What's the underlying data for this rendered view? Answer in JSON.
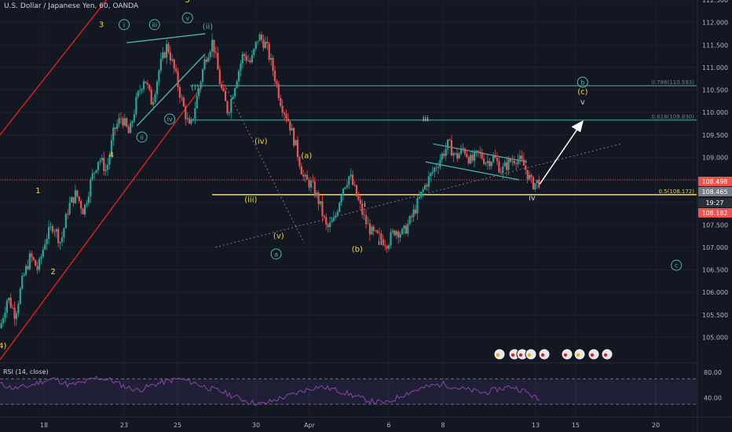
{
  "header": {
    "title": "U.S. Dollar / Japanese Yen, 60, OANDA"
  },
  "rsi": {
    "label": "RSI (14, close)",
    "ticks": [
      "80.00",
      "40.00"
    ]
  },
  "colors": {
    "bg": "#131722",
    "grid": "#1e222d",
    "up": "#26a69a",
    "down": "#ef5350",
    "wave": "#f5d142",
    "minor": "#4db6ac",
    "red": "#e02020",
    "yellow": "#e8d227",
    "rsi": "#8e44ad"
  },
  "chart_data": {
    "type": "candlestick",
    "symbol": "USD/JPY",
    "timeframe": "60",
    "source": "OANDA",
    "ylim": [
      104.5,
      112.5
    ],
    "y_ticks": [
      "112.500",
      "112.000",
      "111.500",
      "111.000",
      "110.500",
      "110.000",
      "109.500",
      "109.000",
      "108.000",
      "107.500",
      "107.000",
      "106.500",
      "106.000",
      "105.500",
      "105.000"
    ],
    "x_ticks": [
      "18",
      "23",
      "25",
      "30",
      "Apr",
      "6",
      "8",
      "13",
      "15",
      "20"
    ],
    "price_markers": [
      {
        "label": "108.498",
        "value": 108.498,
        "color": "#ef5350"
      },
      {
        "label": "108.465",
        "value": 108.405,
        "color": "#787b86"
      },
      {
        "label": "19:27",
        "value": 108.2,
        "color": "#2a2e39"
      },
      {
        "label": "108.182",
        "value": 107.99,
        "color": "#ef5350"
      }
    ],
    "fib_levels": [
      {
        "label": "0.786(110.593)",
        "value": 110.593
      },
      {
        "label": "0.618(109.830)",
        "value": 109.83
      },
      {
        "label": "0.5(108.172)",
        "value": 108.172
      }
    ],
    "path": [
      [
        0,
        105.2
      ],
      [
        3,
        105.9
      ],
      [
        6,
        105.5
      ],
      [
        9,
        106.3
      ],
      [
        12,
        106.8
      ],
      [
        15,
        106.5
      ],
      [
        18,
        107.2
      ],
      [
        21,
        107.5
      ],
      [
        24,
        107.1
      ],
      [
        27,
        107.9
      ],
      [
        30,
        108.2
      ],
      [
        33,
        107.8
      ],
      [
        36,
        108.5
      ],
      [
        39,
        109.0
      ],
      [
        42,
        108.7
      ],
      [
        45,
        109.6
      ],
      [
        48,
        109.9
      ],
      [
        51,
        109.5
      ],
      [
        54,
        110.3
      ],
      [
        57,
        110.8
      ],
      [
        60,
        110.2
      ],
      [
        63,
        111.0
      ],
      [
        66,
        111.5
      ],
      [
        69,
        110.9
      ],
      [
        72,
        110.2
      ],
      [
        75,
        109.6
      ],
      [
        78,
        110.4
      ],
      [
        81,
        111.2
      ],
      [
        84,
        111.6
      ],
      [
        87,
        110.6
      ],
      [
        90,
        110.0
      ],
      [
        93,
        110.7
      ],
      [
        96,
        111.3
      ],
      [
        99,
        111.1
      ],
      [
        102,
        111.7
      ],
      [
        105,
        111.5
      ],
      [
        108,
        110.9
      ],
      [
        111,
        110.2
      ],
      [
        114,
        109.8
      ],
      [
        117,
        109.2
      ],
      [
        120,
        108.5
      ],
      [
        123,
        108.4
      ],
      [
        126,
        108.0
      ],
      [
        129,
        107.4
      ],
      [
        132,
        107.6
      ],
      [
        135,
        108.3
      ],
      [
        138,
        108.6
      ],
      [
        141,
        108.1
      ],
      [
        144,
        107.6
      ],
      [
        147,
        107.3
      ],
      [
        150,
        107.2
      ],
      [
        153,
        107.1
      ],
      [
        156,
        107.4
      ],
      [
        159,
        107.3
      ],
      [
        162,
        107.6
      ],
      [
        165,
        108.0
      ],
      [
        168,
        108.4
      ],
      [
        171,
        108.7
      ],
      [
        174,
        109.0
      ],
      [
        177,
        109.3
      ],
      [
        180,
        109.0
      ],
      [
        183,
        109.2
      ],
      [
        186,
        108.9
      ],
      [
        189,
        109.1
      ],
      [
        192,
        108.9
      ],
      [
        195,
        109.0
      ],
      [
        198,
        108.7
      ],
      [
        201,
        108.9
      ],
      [
        204,
        109.0
      ],
      [
        207,
        108.8
      ],
      [
        210,
        108.4
      ],
      [
        213,
        108.465
      ]
    ],
    "rsi_values": [
      62,
      55,
      58,
      66,
      70,
      60,
      64,
      72,
      68,
      58,
      52,
      60,
      66,
      70,
      64,
      56,
      50,
      42,
      34,
      30,
      38,
      44,
      52,
      58,
      54,
      48,
      40,
      34,
      32,
      44,
      52,
      58,
      62,
      56,
      52,
      48,
      54,
      58,
      50,
      36
    ],
    "wave_labels": [
      {
        "text": "5",
        "t": 74,
        "y": 112.45,
        "color": "#f5d142"
      },
      {
        "text": "3",
        "t": 40,
        "y": 111.9,
        "color": "#f5d142"
      },
      {
        "text": "4",
        "t": 44,
        "y": 109.0,
        "color": "#f5d142"
      },
      {
        "text": "1",
        "t": 15,
        "y": 108.2,
        "color": "#f5d142"
      },
      {
        "text": "2",
        "t": 21,
        "y": 106.4,
        "color": "#f5d142"
      },
      {
        "text": "4)",
        "t": 1,
        "y": 104.75,
        "color": "#f5d142"
      },
      {
        "text": "(ii)",
        "t": 82,
        "y": 111.85,
        "color": "#4db6ac"
      },
      {
        "text": "(i)",
        "t": 77,
        "y": 110.5,
        "color": "#4db6ac"
      },
      {
        "text": "(iv)",
        "t": 103,
        "y": 109.3,
        "color": "#f5d142"
      },
      {
        "text": "(iii)",
        "t": 99,
        "y": 108.0,
        "color": "#f5d142"
      },
      {
        "text": "(v)",
        "t": 110,
        "y": 107.2,
        "color": "#f5d142"
      },
      {
        "text": "(a)",
        "t": 121,
        "y": 108.98,
        "color": "#f5d142"
      },
      {
        "text": "(b)",
        "t": 141,
        "y": 106.9,
        "color": "#f5d142"
      },
      {
        "text": "iii",
        "t": 168,
        "y": 109.8,
        "color": "#d1d4dc"
      },
      {
        "text": "i",
        "t": 144,
        "y": 107.9,
        "color": "#d1d4dc"
      },
      {
        "text": "ii",
        "t": 150,
        "y": 107.05,
        "color": "#d1d4dc"
      },
      {
        "text": "iv",
        "t": 210,
        "y": 108.05,
        "color": "#d1d4dc"
      },
      {
        "text": "(c)",
        "t": 230,
        "y": 110.4,
        "color": "#f5d142"
      },
      {
        "text": "v",
        "t": 230,
        "y": 110.18,
        "color": "#d1d4dc"
      }
    ],
    "circle_labels": [
      {
        "text": "i",
        "t": 49,
        "y": 111.9,
        "color": "#4db6ac"
      },
      {
        "text": "iii",
        "t": 61,
        "y": 111.9,
        "color": "#4db6ac"
      },
      {
        "text": "v",
        "t": 74,
        "y": 112.05,
        "color": "#4db6ac"
      },
      {
        "text": "iv",
        "t": 67,
        "y": 109.8,
        "color": "#4db6ac"
      },
      {
        "text": "ii",
        "t": 56,
        "y": 109.4,
        "color": "#4db6ac"
      },
      {
        "text": "a",
        "t": 109,
        "y": 106.8,
        "color": "#4db6ac"
      },
      {
        "text": "b",
        "t": 230,
        "y": 110.62,
        "color": "#4db6ac"
      },
      {
        "text": "c",
        "t": 267,
        "y": 106.55,
        "color": "#4db6ac"
      }
    ]
  }
}
